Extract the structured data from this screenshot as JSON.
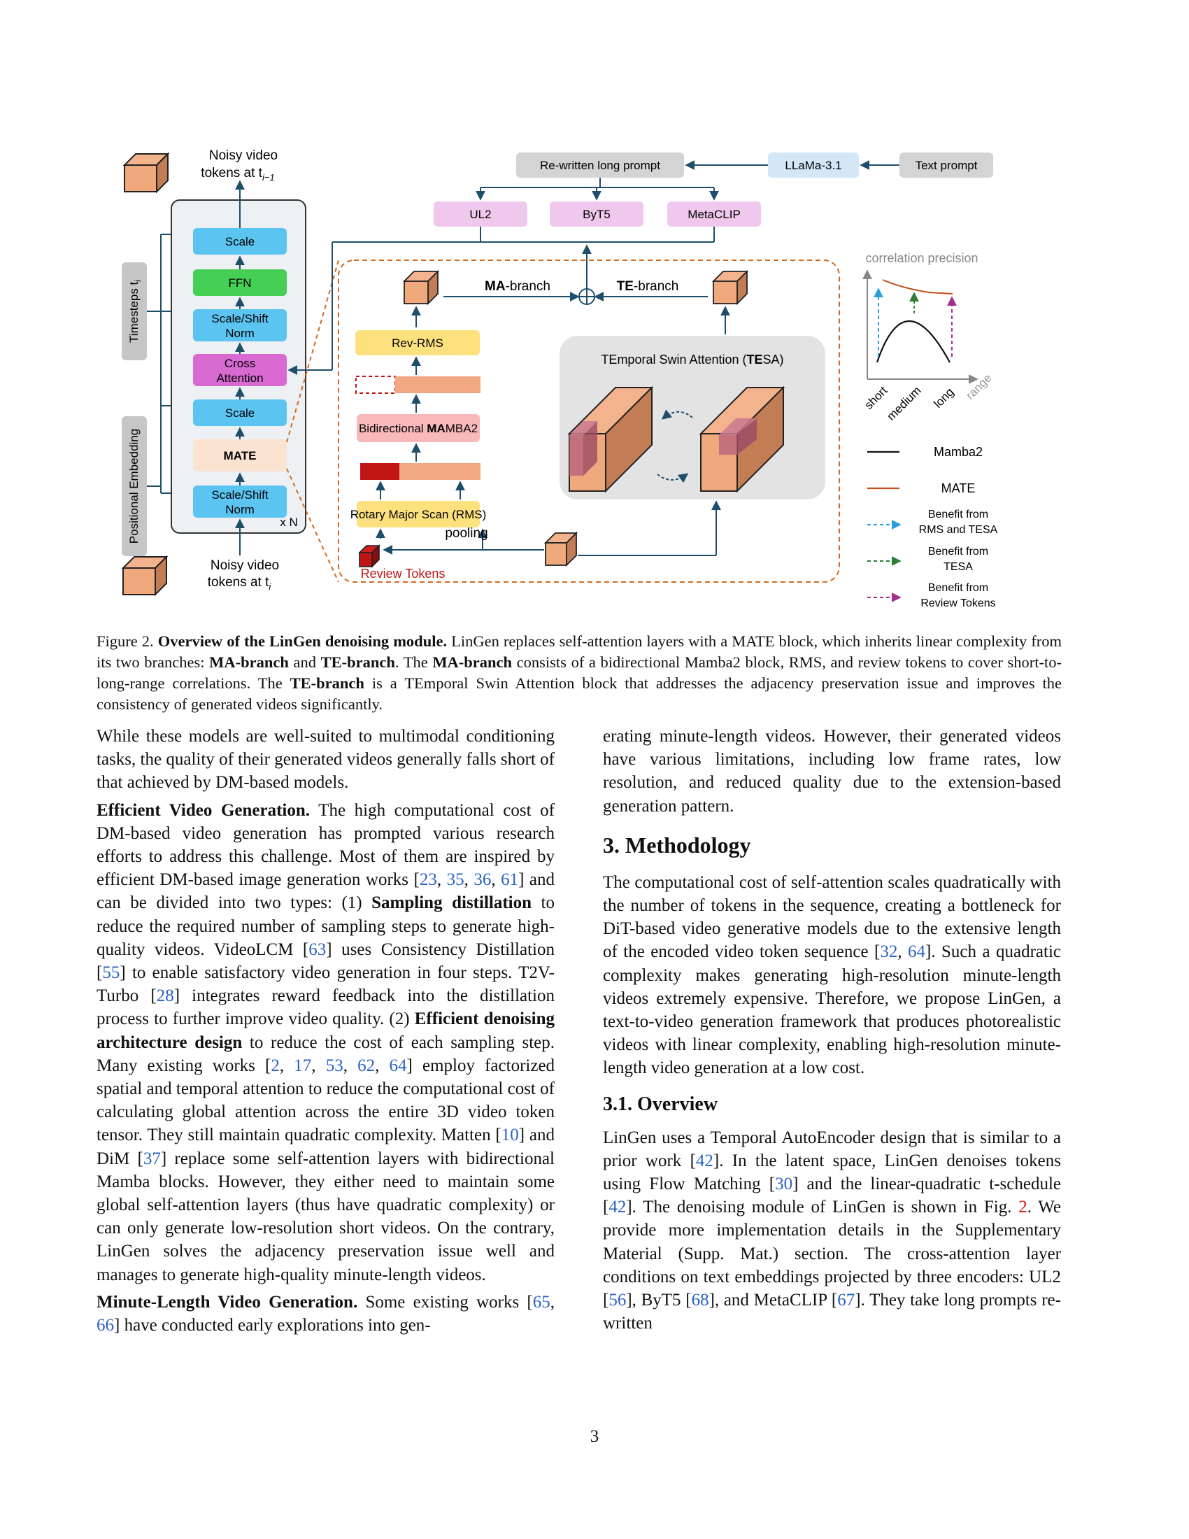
{
  "figure": {
    "noisy_out_label_1": "Noisy video",
    "noisy_out_label_2": "tokens at t",
    "noisy_out_sub": "i−1",
    "noisy_in_label_1": "Noisy video",
    "noisy_in_label_2": "tokens at t",
    "noisy_in_sub": "i",
    "timesteps_label": "Timesteps t",
    "timesteps_sub": "i",
    "posemb_label": "Positional Embedding",
    "blocks": {
      "scale_top": "Scale",
      "ffn": "FFN",
      "norm1_a": "Scale/Shift",
      "norm1_b": "Norm",
      "cross_a": "Cross",
      "cross_b": "Attention",
      "scale_mid": "Scale",
      "mate": "MATE",
      "norm2_a": "Scale/Shift",
      "norm2_b": "Norm",
      "xn": "x N"
    },
    "prompt": {
      "rewritten": "Re-written long prompt",
      "llama": "LLaMa-3.1",
      "text_prompt": "Text prompt",
      "ul2": "UL2",
      "byt5": "ByT5",
      "metaclip": "MetaCLIP"
    },
    "mate_detail": {
      "ma_branch_bold": "MA",
      "ma_branch_rest": "-branch",
      "te_branch_bold": "TE",
      "te_branch_rest": "-branch",
      "rev_rms": "Rev-RMS",
      "bi_mamba_pre": "Bidirectional ",
      "bi_mamba_bold": "MA",
      "bi_mamba_post": "MBA2",
      "rms": "Rotary Major Scan (RMS)",
      "pooling": "pooling",
      "review_tokens": "Review Tokens",
      "tesa_pre": "TEmporal Swin Attention (",
      "tesa_bold": "TE",
      "tesa_post": "SA)"
    },
    "chart": {
      "title": "correlation precision",
      "x_ticks": [
        "short",
        "medium",
        "long",
        "range"
      ],
      "legend": {
        "mamba2": "Mamba2",
        "mate": "MATE",
        "benefit_rms_1": "Benefit from",
        "benefit_rms_2": "RMS and TESA",
        "benefit_tesa_1": "Benefit from",
        "benefit_tesa_2": "TESA",
        "benefit_review_1": "Benefit from",
        "benefit_review_2": "Review Tokens"
      },
      "colors": {
        "mamba2": "#111111",
        "mate": "#c0501c",
        "rms_tesa": "#2aa0d8",
        "tesa": "#2e7d32",
        "review": "#a0308a"
      }
    }
  },
  "caption": {
    "label": "Figure 2.",
    "title": "Overview of the LinGen denoising module.",
    "t1": " LinGen replaces self-attention layers with a MATE block, which inherits linear complexity from its two branches: ",
    "b1": "MA-branch",
    "t2": " and ",
    "b2": "TE-branch",
    "t3": ". The ",
    "b3": "MA-branch",
    "t4": " consists of a bidirectional Mamba2 block, RMS, and review tokens to cover short-to-long-range correlations. The ",
    "b4": "TE-branch",
    "t5": " is a TEmporal Swin Attention block that addresses the adjacency preservation issue and improves the consistency of generated videos significantly."
  },
  "left": {
    "p1": "While these models are well-suited to multimodal conditioning tasks, the quality of their generated videos generally falls short of that achieved by DM-based models.",
    "p2_head": "Efficient Video Generation.",
    "p2_a": " The high computational cost of DM-based video generation has prompted various research efforts to address this challenge. Most of them are inspired by efficient DM-based image generation works [",
    "r23": "23",
    "r35": "35",
    "r36": "36",
    "r61": "61",
    "p2_b": "] and can be divided into two types: (1) ",
    "p2_bold1": "Sampling distillation",
    "p2_c": " to reduce the required number of sampling steps to generate high-quality videos. VideoLCM [",
    "r63": "63",
    "p2_d": "] uses Consistency Distillation [",
    "r55": "55",
    "p2_e": "] to enable satisfactory video generation in four steps. T2V-Turbo [",
    "r28": "28",
    "p2_f": "] integrates reward feedback into the distillation process to further improve video quality. (2) ",
    "p2_bold2": "Efficient denoising architecture design",
    "p2_g": " to reduce the cost of each sampling step. Many existing works [",
    "r2": "2",
    "r17": "17",
    "r53": "53",
    "r62": "62",
    "r64": "64",
    "p2_h": "] employ factorized spatial and temporal attention to reduce the computational cost of calculating global attention across the entire 3D video token tensor. They still maintain quadratic complexity. Matten [",
    "r10": "10",
    "p2_i": "] and DiM [",
    "r37": "37",
    "p2_j": "] replace some self-attention layers with bidirectional Mamba blocks. However, they either need to maintain some global self-attention layers (thus have quadratic complexity) or can only generate low-resolution short videos. On the contrary, LinGen solves the adjacency preservation issue well and manages to generate high-quality minute-length videos.",
    "p3_head": "Minute-Length Video Generation.",
    "p3_a": " Some existing works [",
    "r65": "65",
    "r66": "66",
    "p3_b": "] have conducted early explorations into gen-"
  },
  "right": {
    "p1": "erating minute-length videos. However, their generated videos have various limitations, including low frame rates, low resolution, and reduced quality due to the extension-based generation pattern.",
    "h_method": "3. Methodology",
    "p2_a": "The computational cost of self-attention scales quadratically with the number of tokens in the sequence, creating a bottleneck for DiT-based video generative models due to the extensive length of the encoded video token sequence [",
    "r32": "32",
    "r64": "64",
    "p2_b": "]. Such a quadratic complexity makes generating high-resolution minute-length videos extremely expensive. Therefore, we propose LinGen, a text-to-video generation framework that produces photorealistic videos with linear complexity, enabling high-resolution minute-length video generation at a low cost.",
    "h_overview": "3.1. Overview",
    "p3_a": "LinGen uses a Temporal AutoEncoder design that is similar to a prior work [",
    "r42a": "42",
    "p3_b": "]. In the latent space, LinGen denoises tokens using Flow Matching [",
    "r30": "30",
    "p3_c": "] and the linear-quadratic t-schedule [",
    "r42b": "42",
    "p3_d": "]. The denoising module of LinGen is shown in Fig. ",
    "fig2": "2",
    "p3_e": ". We provide more implementation details in the Supplementary Material (Supp. Mat.) section. The cross-attention layer conditions on text embeddings projected by three encoders: UL2 [",
    "r56": "56",
    "p3_f": "], ByT5 [",
    "r68": "68",
    "p3_g": "], and MetaCLIP [",
    "r67": "67",
    "p3_h": "]. They take long prompts re-written"
  },
  "page_number": "3"
}
